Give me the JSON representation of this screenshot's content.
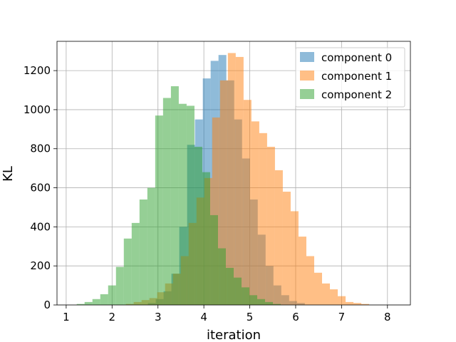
{
  "chart_data": {
    "type": "histogram",
    "xlabel": "iteration",
    "ylabel": "KL",
    "xlim": [
      0.8,
      8.5
    ],
    "ylim": [
      0,
      1350
    ],
    "xticks": [
      "1",
      "2",
      "3",
      "4",
      "5",
      "6",
      "7",
      "8"
    ],
    "yticks": [
      "0",
      "200",
      "400",
      "600",
      "800",
      "1000",
      "1200"
    ],
    "grid": true,
    "legend_position": "top-right",
    "series": [
      {
        "name": "component 0",
        "color": "#1f77b4",
        "bin_start": 2.78,
        "bin_width": 0.171,
        "counts": [
          10,
          30,
          70,
          160,
          400,
          820,
          950,
          1160,
          1250,
          1280,
          1150,
          950,
          750,
          540,
          360,
          200,
          100,
          50,
          20,
          10
        ]
      },
      {
        "name": "component 1",
        "color": "#ff7f0e",
        "bin_start": 2.3,
        "bin_width": 0.171,
        "counts": [
          5,
          15,
          25,
          35,
          65,
          110,
          160,
          250,
          420,
          550,
          650,
          960,
          1150,
          1290,
          1270,
          1050,
          940,
          880,
          810,
          690,
          580,
          480,
          350,
          250,
          165,
          110,
          80,
          45,
          15,
          10,
          5
        ]
      },
      {
        "name": "component 2",
        "color": "#2ca02c",
        "bin_start": 1.23,
        "bin_width": 0.171,
        "counts": [
          5,
          15,
          30,
          55,
          100,
          195,
          340,
          420,
          540,
          600,
          970,
          1060,
          1120,
          1030,
          1020,
          810,
          680,
          460,
          290,
          190,
          140,
          90,
          50,
          30,
          15,
          5
        ]
      }
    ]
  }
}
